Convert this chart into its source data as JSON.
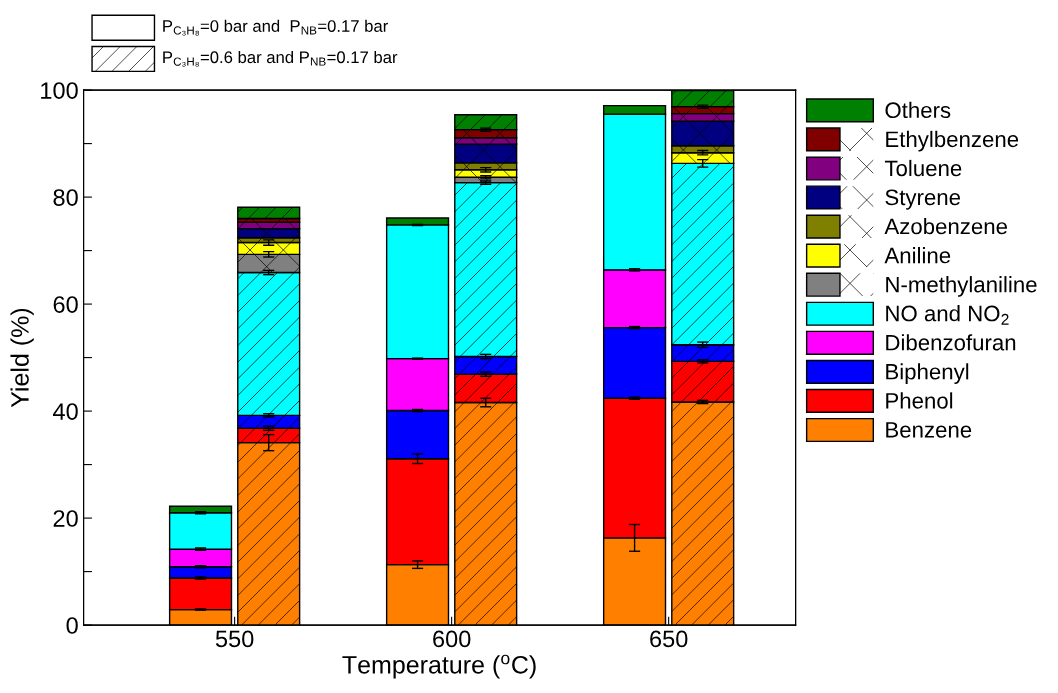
{
  "chart_data": [
    {
      "type": "bar",
      "stacked": true,
      "xlabel": "Temperature ($^{o}$C)",
      "ylabel": "Yield (%)",
      "annotations": [
        "P$_{C₃H₈}$=0 bar and  P$_{NB}$=0.17 bar"
      ],
      "categories": [
        "550",
        "600",
        "650"
      ],
      "ylim": [
        0,
        100
      ],
      "yticks": [
        0,
        {
          "value": 10,
          "label": null
        },
        20,
        {
          "value": 30,
          "label": null
        },
        40,
        {
          "value": 50,
          "label": null
        },
        60,
        {
          "value": 70,
          "label": null
        },
        80,
        {
          "value": 90,
          "label": null
        },
        100
      ],
      "legend": "right",
      "series": [
        {
          "name": "Benzene",
          "color": "#ff8000",
          "values": [
            2.9,
            11.3,
            16.3
          ],
          "errors": [
            0.1,
            0.7,
            2.5
          ]
        },
        {
          "name": "Phenol",
          "color": "#ff0000",
          "values": [
            5.9,
            19.8,
            26.1
          ],
          "errors": [
            0.2,
            0.9,
            0.2
          ]
        },
        {
          "name": "Biphenyl",
          "color": "#0000ff",
          "values": [
            2.1,
            9.0,
            13.2
          ],
          "errors": [
            0.2,
            0.2,
            0.2
          ]
        },
        {
          "name": "Dibenzofuran",
          "color": "#ff00ff",
          "values": [
            3.3,
            9.7,
            10.8
          ],
          "errors": [
            0.2,
            0.1,
            0.2
          ]
        },
        {
          "name": "NO and NO$_{2}$",
          "color": "#00ffff",
          "values": [
            6.8,
            25.0,
            29.1
          ],
          "errors": [
            0.2,
            0.1,
            null
          ]
        },
        {
          "name": "N-methylaniline",
          "color": "#808080",
          "values": [
            null,
            null,
            null
          ]
        },
        {
          "name": "Aniline",
          "color": "#ffff00",
          "values": [
            null,
            null,
            null
          ]
        },
        {
          "name": "Azobenzene",
          "color": "#808000",
          "values": [
            null,
            null,
            null
          ]
        },
        {
          "name": "Styrene",
          "color": "#000080",
          "values": [
            null,
            null,
            null
          ]
        },
        {
          "name": "Toluene",
          "color": "#800080",
          "values": [
            null,
            null,
            null
          ]
        },
        {
          "name": "Ethylbenzene",
          "color": "#800000",
          "values": [
            null,
            null,
            null
          ]
        },
        {
          "name": "Others",
          "color": "#008000",
          "values": [
            1.2,
            1.3,
            1.6
          ]
        }
      ]
    },
    {
      "type": "bar",
      "stacked": true,
      "tick_labels": false,
      "annotations": [
        "P$_{C₃H₈}$=0.6 bar and P$_{NB}$=0.17 bar"
      ],
      "categories": [
        "550",
        "600",
        "650"
      ],
      "ylim": [
        0,
        100
      ],
      "series": [
        {
          "color": "#ff8000",
          "values": [
            34.1,
            41.6,
            41.7
          ],
          "errors": [
            1.5,
            0.8,
            0.3
          ]
        },
        {
          "color": "#ff0000",
          "values": [
            2.7,
            5.3,
            7.6
          ],
          "errors": [
            0.4,
            0.4,
            0.3
          ]
        },
        {
          "color": "#0000ff",
          "values": [
            2.4,
            3.3,
            3.1
          ],
          "errors": [
            0.3,
            0.4,
            0.5
          ]
        },
        {
          "color": "#ff00ff",
          "values": [
            null,
            null,
            null
          ]
        },
        {
          "color": "#00ffff",
          "values": [
            26.7,
            32.5,
            33.9
          ],
          "errors": [
            0.4,
            0.3,
            0.7
          ]
        },
        {
          "color": "#808080",
          "values": [
            3.4,
            1.0,
            null
          ],
          "errors": [
            0.5,
            0.3,
            null
          ]
        },
        {
          "color": "#ffff00",
          "values": [
            2.2,
            1.4,
            2.0
          ],
          "errors": [
            0.5,
            0.4,
            0.4
          ]
        },
        {
          "color": "#808000",
          "values": [
            0.9,
            1.3,
            1.3
          ]
        },
        {
          "color": "#000080",
          "values": [
            1.7,
            3.5,
            4.6
          ]
        },
        {
          "color": "#800080",
          "values": [
            1.2,
            1.2,
            1.4
          ]
        },
        {
          "color": "#800000",
          "values": [
            0.7,
            1.5,
            1.3
          ],
          "errors": [
            null,
            0.3,
            0.3
          ]
        },
        {
          "color": "#008000",
          "values": [
            2.1,
            2.8,
            3.0
          ]
        }
      ]
    }
  ]
}
